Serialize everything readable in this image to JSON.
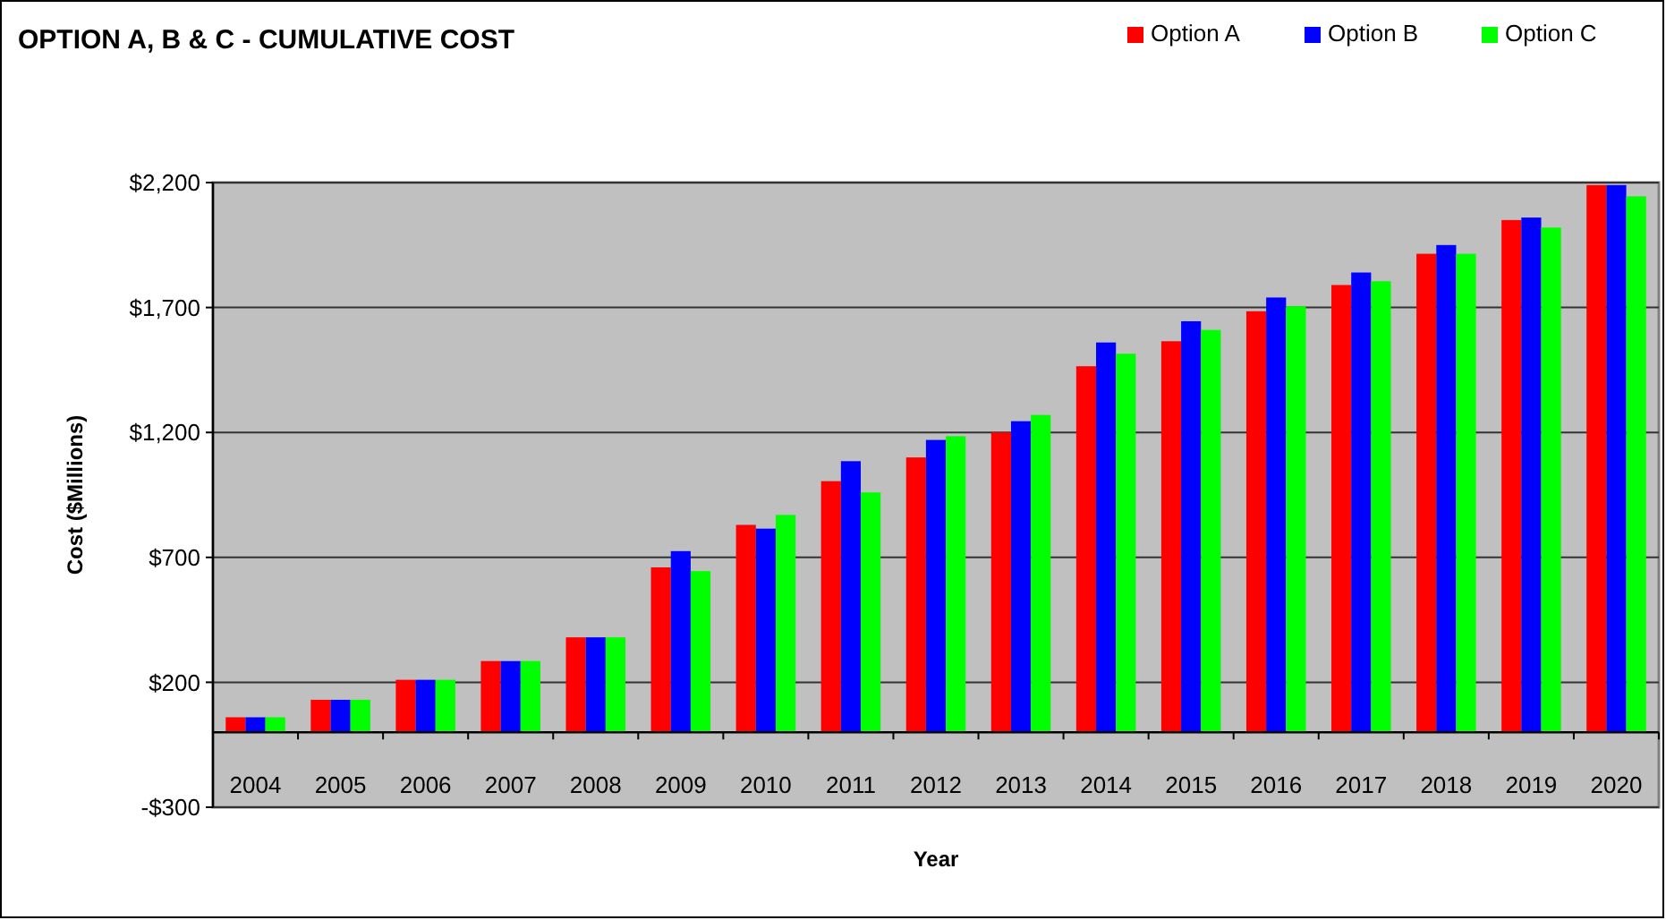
{
  "chart_data": {
    "type": "bar",
    "title": "OPTION A, B & C - CUMULATIVE COST",
    "xlabel": "Year",
    "ylabel": "Cost ($Millions)",
    "categories": [
      "2004",
      "2005",
      "2006",
      "2007",
      "2008",
      "2009",
      "2010",
      "2011",
      "2012",
      "2013",
      "2014",
      "2015",
      "2016",
      "2017",
      "2018",
      "2019",
      "2020"
    ],
    "series": [
      {
        "name": "Option A",
        "color": "#ff0000",
        "values": [
          60,
          130,
          210,
          285,
          380,
          660,
          830,
          1005,
          1100,
          1200,
          1465,
          1565,
          1685,
          1790,
          1915,
          2050,
          2190
        ]
      },
      {
        "name": "Option B",
        "color": "#0000ff",
        "values": [
          60,
          130,
          210,
          285,
          380,
          725,
          815,
          1085,
          1170,
          1245,
          1560,
          1645,
          1740,
          1840,
          1950,
          2060,
          2190
        ]
      },
      {
        "name": "Option C",
        "color": "#00ff00",
        "values": [
          60,
          130,
          210,
          285,
          380,
          645,
          870,
          960,
          1185,
          1270,
          1515,
          1610,
          1705,
          1805,
          1915,
          2020,
          2145
        ]
      }
    ],
    "ylim": [
      -300,
      2200
    ],
    "yticks": [
      {
        "value": -300,
        "label": "-$300"
      },
      {
        "value": 200,
        "label": "$200"
      },
      {
        "value": 700,
        "label": "$700"
      },
      {
        "value": 1200,
        "label": "$1,200"
      },
      {
        "value": 1700,
        "label": "$1,700"
      },
      {
        "value": 2200,
        "label": "$2,200"
      }
    ],
    "grid": "y",
    "legend": "top right"
  }
}
